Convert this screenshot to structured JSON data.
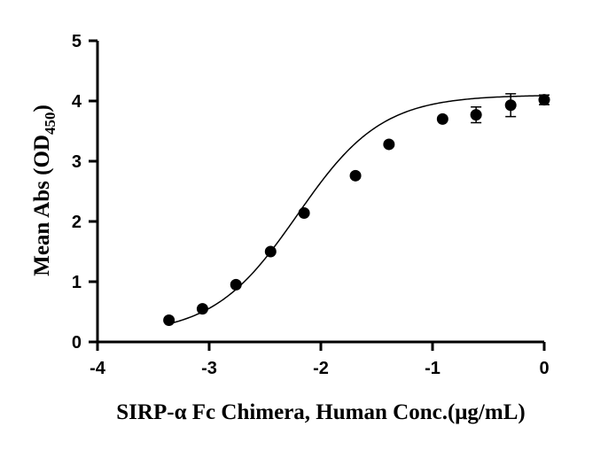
{
  "chart_data": {
    "type": "scatter",
    "title": "",
    "xlabel": "SIRP-α Fc Chimera, Human Conc.(μg/mL)",
    "ylabel": {
      "main": "Mean Abs (OD",
      "subscript": "450",
      "close": ")"
    },
    "xlim": [
      -4,
      0
    ],
    "ylim": [
      0,
      5
    ],
    "xticks": [
      "-4",
      "-3",
      "-2",
      "-1",
      "0"
    ],
    "yticks": [
      "0",
      "1",
      "2",
      "3",
      "4",
      "5"
    ],
    "grid": false,
    "fit_curve": "four-parameter logistic",
    "series": [
      {
        "points": [
          {
            "x": -3.36,
            "y": 0.36,
            "err": 0.03
          },
          {
            "x": -3.06,
            "y": 0.55,
            "err": 0.03
          },
          {
            "x": -2.76,
            "y": 0.95,
            "err": 0.03
          },
          {
            "x": -2.45,
            "y": 1.5,
            "err": 0.04
          },
          {
            "x": -2.15,
            "y": 2.14,
            "err": 0.04
          },
          {
            "x": -1.69,
            "y": 2.76,
            "err": 0.04
          },
          {
            "x": -1.39,
            "y": 3.28,
            "err": 0.04
          },
          {
            "x": -0.91,
            "y": 3.7,
            "err": 0.04
          },
          {
            "x": -0.61,
            "y": 3.77,
            "err": 0.13
          },
          {
            "x": -0.3,
            "y": 3.93,
            "err": 0.19
          },
          {
            "x": 0.0,
            "y": 4.02,
            "err": 0.08
          }
        ]
      }
    ],
    "colors": {
      "marker": "#000000",
      "curve": "#000000",
      "axis": "#000000"
    }
  }
}
